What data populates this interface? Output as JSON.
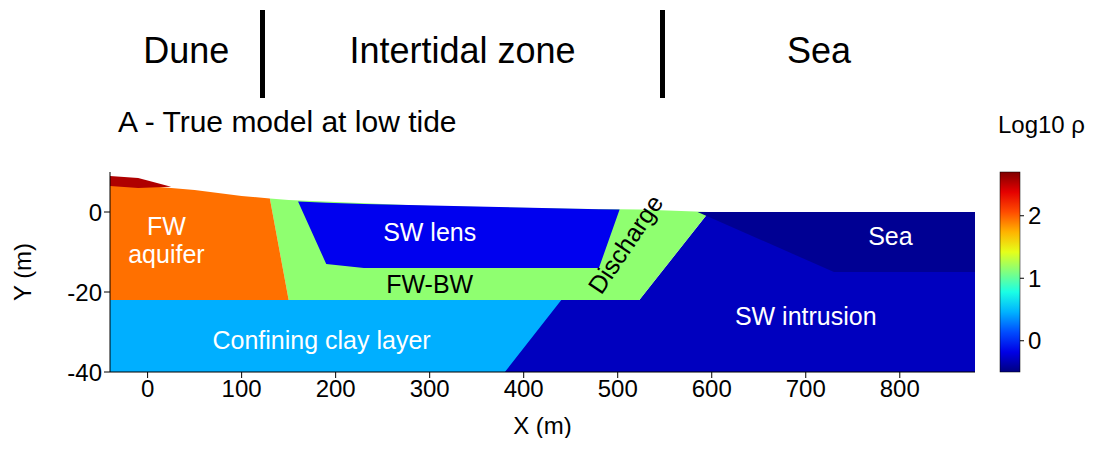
{
  "chart_data": {
    "type": "area",
    "title": "A - True model at low tide",
    "zones": [
      {
        "label": "Dune",
        "from": -40,
        "to": 122
      },
      {
        "label": "Intertidal zone",
        "from": 122,
        "to": 548
      },
      {
        "label": "Sea",
        "from": 548,
        "to": 880
      }
    ],
    "x_label": "X (m)",
    "y_label": "Y (m)",
    "xlim": [
      -40,
      880
    ],
    "ylim": [
      -40,
      10
    ],
    "xticks": [
      0,
      100,
      200,
      300,
      400,
      500,
      600,
      700,
      800
    ],
    "yticks": [
      -40,
      -20,
      0
    ],
    "colorbar": {
      "label": "Log10 ρ",
      "range": [
        -0.5,
        2.7
      ],
      "ticks": [
        0,
        1,
        2
      ]
    },
    "regions": [
      {
        "value": 0.45,
        "x": [
          -40,
          880
        ],
        "bottom": [
          -40,
          -40
        ],
        "top": [
          -22,
          -22
        ]
      },
      {
        "value": -0.3,
        "x": [
          380,
          440,
          523,
          597,
          880
        ],
        "bottom": [
          -40,
          -40,
          -40,
          -40,
          -40
        ],
        "top": [
          -40,
          -22,
          -22,
          0,
          0
        ]
      },
      {
        "value": 1.15,
        "x": [
          130,
          150,
          300,
          450,
          523,
          597
        ],
        "bottom": [
          3.4,
          -22,
          -22,
          -22,
          -22,
          0
        ],
        "top": [
          3.4,
          3,
          1.5,
          0.8,
          0.6,
          0
        ]
      },
      {
        "value": 1.95,
        "x": [
          -40,
          0,
          50,
          100,
          130,
          150
        ],
        "bottom": [
          -22,
          -22,
          -22,
          -22,
          -22,
          -22
        ],
        "top": [
          8,
          6.5,
          5.5,
          4,
          3.4,
          -22
        ]
      },
      {
        "value": 2.55,
        "x": [
          -40,
          -10,
          25
        ],
        "bottom": [
          6.5,
          6,
          6.3
        ],
        "top": [
          9,
          8.5,
          6.3
        ]
      },
      {
        "value": -0.15,
        "x": [
          160,
          190,
          230,
          480,
          502
        ],
        "bottom": [
          2.6,
          -13,
          -14,
          -14,
          0.6
        ],
        "top": [
          2.6,
          2.3,
          2,
          0.7,
          0.6
        ]
      },
      {
        "value": -0.44,
        "x": [
          585,
          730,
          880
        ],
        "bottom": [
          0,
          -15,
          -15
        ],
        "top": [
          0,
          0,
          0
        ]
      }
    ],
    "annotations": [
      {
        "text": "FW aquifer",
        "x": 20,
        "y": -7,
        "color": "#ffffff"
      },
      {
        "text": "SW lens",
        "x": 300,
        "y": -5,
        "color": "#ffffff"
      },
      {
        "text": "FW-BW",
        "x": 300,
        "y": -18,
        "color": "#000000"
      },
      {
        "text": "Discharge",
        "x": 508,
        "y": -8,
        "color": "#000000"
      },
      {
        "text": "Sea",
        "x": 790,
        "y": -6,
        "color": "#ffffff"
      },
      {
        "text": "SW intrusion",
        "x": 700,
        "y": -26,
        "color": "#ffffff"
      },
      {
        "text": "Confining clay layer",
        "x": 185,
        "y": -32,
        "color": "#ffffff"
      }
    ]
  }
}
